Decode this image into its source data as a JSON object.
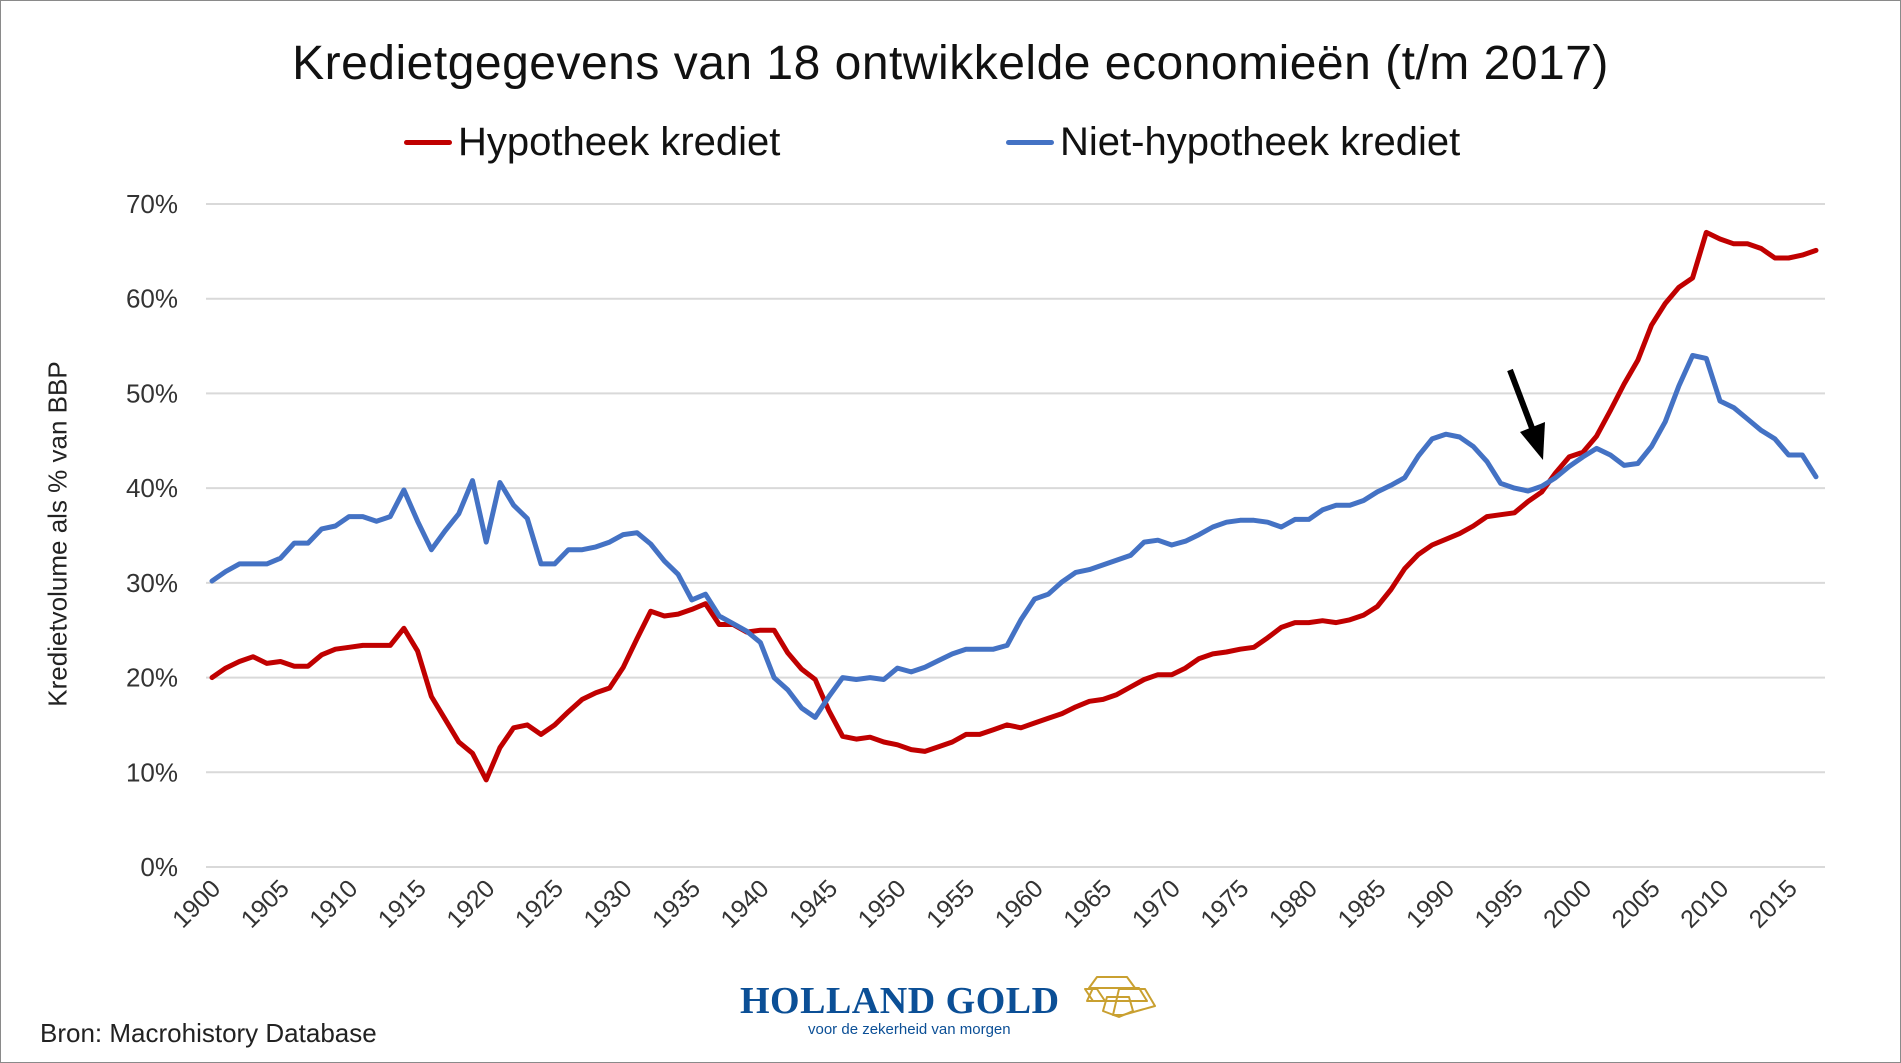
{
  "chart_data": {
    "type": "line",
    "title": "Kredietgegevens van 18 ontwikkelde economieën (t/m 2017)",
    "xlabel": "",
    "ylabel": "Kredietvolume als % van BBP",
    "ylim": [
      0,
      70
    ],
    "xlim": [
      1900,
      2017
    ],
    "y_ticks": [
      "0%",
      "10%",
      "20%",
      "30%",
      "40%",
      "50%",
      "60%",
      "70%"
    ],
    "y_tick_values": [
      0,
      10,
      20,
      30,
      40,
      50,
      60,
      70
    ],
    "x_ticks": [
      "1900",
      "1905",
      "1910",
      "1915",
      "1920",
      "1925",
      "1930",
      "1935",
      "1940",
      "1945",
      "1950",
      "1955",
      "1960",
      "1965",
      "1970",
      "1975",
      "1980",
      "1985",
      "1990",
      "1995",
      "2000",
      "2005",
      "2010",
      "2015"
    ],
    "x_tick_values": [
      1900,
      1905,
      1910,
      1915,
      1920,
      1925,
      1930,
      1935,
      1940,
      1945,
      1950,
      1955,
      1960,
      1965,
      1970,
      1975,
      1980,
      1985,
      1990,
      1995,
      2000,
      2005,
      2010,
      2015
    ],
    "grid": true,
    "legend_position": "top-center",
    "x_start": 1900,
    "series": [
      {
        "name": "Hypotheek krediet",
        "color": "#c00000",
        "values": [
          20,
          21,
          21.7,
          22.2,
          21.5,
          21.7,
          21.2,
          21.2,
          22.4,
          23,
          23.2,
          23.4,
          23.4,
          23.4,
          25.2,
          22.8,
          18,
          15.6,
          13.2,
          12,
          9.2,
          12.6,
          14.7,
          15,
          14,
          15,
          16.4,
          17.7,
          18.4,
          18.9,
          21.1,
          24.1,
          27,
          26.5,
          26.7,
          27.2,
          27.8,
          25.6,
          25.6,
          24.8,
          25,
          25,
          22.6,
          20.9,
          19.8,
          16.5,
          13.8,
          13.5,
          13.7,
          13.2,
          12.9,
          12.4,
          12.2,
          12.7,
          13.2,
          14,
          14,
          14.5,
          15,
          14.7,
          15.2,
          15.7,
          16.2,
          16.9,
          17.5,
          17.7,
          18.2,
          19,
          19.8,
          20.3,
          20.3,
          21,
          22,
          22.5,
          22.7,
          23,
          23.2,
          24.2,
          25.3,
          25.8,
          25.8,
          26,
          25.8,
          26.1,
          26.6,
          27.5,
          29.3,
          31.5,
          33,
          34,
          34.6,
          35.2,
          36,
          37,
          37.2,
          37.4,
          38.6,
          39.6,
          41.6,
          43.3,
          43.8,
          45.5,
          48.2,
          51,
          53.5,
          57.2,
          59.5,
          61.2,
          62.2,
          67,
          66.3,
          65.8,
          65.8,
          65.3,
          64.3,
          64.3,
          64.6,
          65.1
        ]
      },
      {
        "name": "Niet-hypotheek krediet",
        "color": "#4472c4",
        "values": [
          30.2,
          31.2,
          32,
          32,
          32,
          32.6,
          34.2,
          34.2,
          35.7,
          36,
          37,
          37,
          36.5,
          37,
          39.8,
          36.5,
          33.5,
          35.5,
          37.3,
          40.8,
          34.3,
          40.6,
          38.2,
          36.8,
          32,
          32,
          33.5,
          33.5,
          33.8,
          34.3,
          35.1,
          35.3,
          34.1,
          32.3,
          30.9,
          28.2,
          28.8,
          26.5,
          25.7,
          24.9,
          23.7,
          20,
          18.7,
          16.8,
          15.8,
          18,
          20,
          19.8,
          20,
          19.8,
          21,
          20.6,
          21.1,
          21.8,
          22.5,
          23,
          23,
          23,
          23.4,
          26.1,
          28.3,
          28.8,
          30.1,
          31.1,
          31.4,
          31.9,
          32.4,
          32.9,
          34.3,
          34.5,
          34,
          34.4,
          35.1,
          35.9,
          36.4,
          36.6,
          36.6,
          36.4,
          35.9,
          36.7,
          36.7,
          37.7,
          38.2,
          38.2,
          38.7,
          39.6,
          40.3,
          41.1,
          43.4,
          45.2,
          45.7,
          45.4,
          44.4,
          42.8,
          40.5,
          40,
          39.7,
          40.2,
          41.1,
          42.3,
          43.3,
          44.2,
          43.5,
          42.4,
          42.6,
          44.4,
          47,
          50.8,
          54,
          53.7,
          49.2,
          48.5,
          47.3,
          46.1,
          45.2,
          43.5,
          43.5,
          41.2
        ]
      }
    ],
    "annotations": [
      {
        "type": "arrow",
        "points_to_year": 1997
      }
    ]
  },
  "footer": {
    "source": "Bron: Macrohistory Database",
    "logo_name": "HOLLAND GOLD",
    "logo_tagline": "voor de zekerheid van morgen"
  }
}
